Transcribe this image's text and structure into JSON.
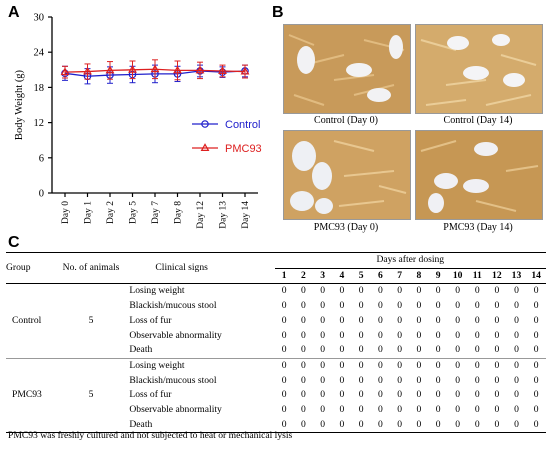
{
  "panel_labels": {
    "a": "A",
    "b": "B",
    "c": "C"
  },
  "chart_data": {
    "type": "line",
    "ylabel": "Body Weight (g)",
    "xlabel": "",
    "categories": [
      "Day 0",
      "Day 1",
      "Day 2",
      "Day 5",
      "Day 7",
      "Day 8",
      "Day 12",
      "Day 13",
      "Day 14"
    ],
    "ylim": [
      0,
      30
    ],
    "yticks": [
      0,
      6,
      12,
      18,
      24,
      30
    ],
    "grid": false,
    "legend_position": "right",
    "series": [
      {
        "name": "Control",
        "color": "#2020cc",
        "marker": "circle",
        "values": [
          20.4,
          19.9,
          20.1,
          20.2,
          20.3,
          20.3,
          20.8,
          20.6,
          20.8
        ],
        "errors": [
          1.2,
          1.3,
          1.4,
          1.4,
          1.5,
          1.3,
          1.0,
          0.9,
          1.0
        ]
      },
      {
        "name": "PMC93",
        "color": "#dd2020",
        "marker": "triangle",
        "values": [
          20.6,
          20.7,
          20.9,
          21.0,
          21.1,
          20.9,
          20.9,
          20.8,
          20.7
        ],
        "errors": [
          1.0,
          1.3,
          1.5,
          1.5,
          1.6,
          1.6,
          1.4,
          1.0,
          1.1
        ]
      }
    ]
  },
  "photos": [
    {
      "caption": "Control (Day 0)"
    },
    {
      "caption": "Control (Day 14)"
    },
    {
      "caption": "PMC93 (Day 0)"
    },
    {
      "caption": "PMC93 (Day 14)"
    }
  ],
  "table": {
    "headers": {
      "group": "Group",
      "animals": "No. of animals",
      "signs": "Clinical signs",
      "days_after": "Days after dosing"
    },
    "days": [
      "1",
      "2",
      "3",
      "4",
      "5",
      "6",
      "7",
      "8",
      "9",
      "10",
      "11",
      "12",
      "13",
      "14"
    ],
    "groups": [
      {
        "name": "Control",
        "animals": "5",
        "rows": [
          {
            "sign": "Losing weight",
            "values": [
              "0",
              "0",
              "0",
              "0",
              "0",
              "0",
              "0",
              "0",
              "0",
              "0",
              "0",
              "0",
              "0",
              "0"
            ]
          },
          {
            "sign": "Blackish/mucous stool",
            "values": [
              "0",
              "0",
              "0",
              "0",
              "0",
              "0",
              "0",
              "0",
              "0",
              "0",
              "0",
              "0",
              "0",
              "0"
            ]
          },
          {
            "sign": "Loss of fur",
            "values": [
              "0",
              "0",
              "0",
              "0",
              "0",
              "0",
              "0",
              "0",
              "0",
              "0",
              "0",
              "0",
              "0",
              "0"
            ]
          },
          {
            "sign": "Observable abnormality",
            "values": [
              "0",
              "0",
              "0",
              "0",
              "0",
              "0",
              "0",
              "0",
              "0",
              "0",
              "0",
              "0",
              "0",
              "0"
            ]
          },
          {
            "sign": "Death",
            "values": [
              "0",
              "0",
              "0",
              "0",
              "0",
              "0",
              "0",
              "0",
              "0",
              "0",
              "0",
              "0",
              "0",
              "0"
            ]
          }
        ]
      },
      {
        "name": "PMC93",
        "animals": "5",
        "rows": [
          {
            "sign": "Losing weight",
            "values": [
              "0",
              "0",
              "0",
              "0",
              "0",
              "0",
              "0",
              "0",
              "0",
              "0",
              "0",
              "0",
              "0",
              "0"
            ]
          },
          {
            "sign": "Blackish/mucous stool",
            "values": [
              "0",
              "0",
              "0",
              "0",
              "0",
              "0",
              "0",
              "0",
              "0",
              "0",
              "0",
              "0",
              "0",
              "0"
            ]
          },
          {
            "sign": "Loss of fur",
            "values": [
              "0",
              "0",
              "0",
              "0",
              "0",
              "0",
              "0",
              "0",
              "0",
              "0",
              "0",
              "0",
              "0",
              "0"
            ]
          },
          {
            "sign": "Observable abnormality",
            "values": [
              "0",
              "0",
              "0",
              "0",
              "0",
              "0",
              "0",
              "0",
              "0",
              "0",
              "0",
              "0",
              "0",
              "0"
            ]
          },
          {
            "sign": "Death",
            "values": [
              "0",
              "0",
              "0",
              "0",
              "0",
              "0",
              "0",
              "0",
              "0",
              "0",
              "0",
              "0",
              "0",
              "0"
            ]
          }
        ]
      }
    ],
    "footnote": "PMC93 was freshly cultured and not subjected to heat or mechanical lysis"
  }
}
